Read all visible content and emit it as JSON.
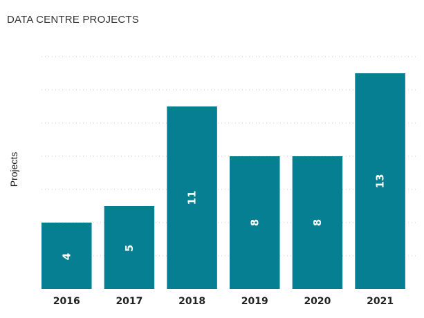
{
  "chart_data": {
    "type": "bar",
    "title": "DATA CENTRE PROJECTS",
    "xlabel": "",
    "ylabel": "Projects",
    "categories": [
      "2016",
      "2017",
      "2018",
      "2019",
      "2020",
      "2021"
    ],
    "values": [
      4,
      5,
      11,
      8,
      8,
      13
    ],
    "ylim": [
      0,
      14
    ],
    "grid": true,
    "data_labels": "inside-rotated",
    "colors": {
      "bar": "#057f91"
    }
  }
}
